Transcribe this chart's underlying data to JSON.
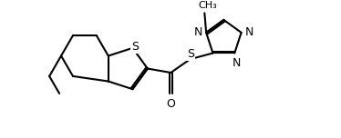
{
  "bg_color": "#ffffff",
  "line_color": "#000000",
  "lw": 1.5,
  "fs": 8.5,
  "figsize": [
    3.74,
    1.52
  ],
  "dpi": 100,
  "xlim": [
    0,
    10
  ],
  "ylim": [
    0,
    4
  ]
}
